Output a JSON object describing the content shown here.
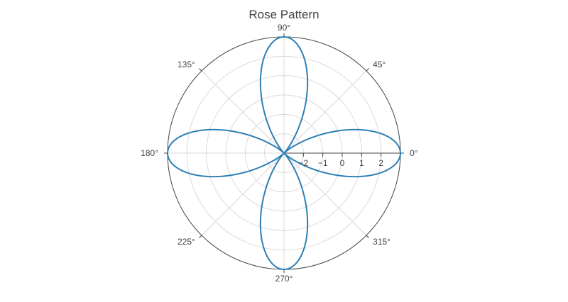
{
  "chart_data": {
    "type": "line",
    "subtype": "polar",
    "title": "Rose Pattern",
    "series": [
      {
        "type": "rose",
        "formula": "r = 3·cos(4θ)",
        "color": "#2e7fb4",
        "amplitude": 3,
        "k": 4
      }
    ],
    "angular_axis": {
      "tick_labels": [
        "0°",
        "45°",
        "90°",
        "135°",
        "180°",
        "225°",
        "270°",
        "315°"
      ],
      "tick_values_deg": [
        0,
        45,
        90,
        135,
        180,
        225,
        270,
        315
      ],
      "grid": true
    },
    "radial_axis": {
      "range": [
        -3,
        3
      ],
      "tick_values": [
        -2,
        -1,
        0,
        1,
        2
      ],
      "tick_labels": [
        "−2",
        "−1",
        "0",
        "1",
        "2"
      ],
      "grid_values": [
        -2,
        -1,
        0,
        1,
        2
      ],
      "angle_deg": 0
    }
  }
}
